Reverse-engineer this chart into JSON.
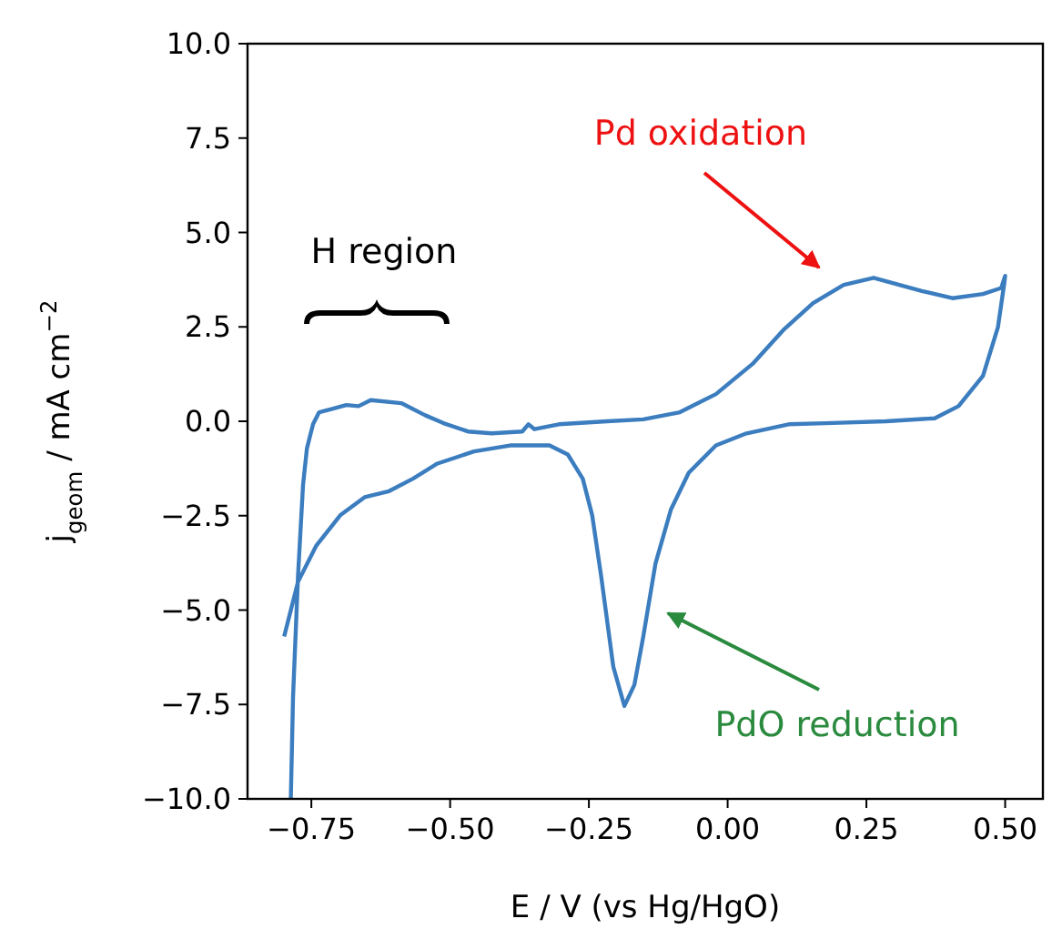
{
  "chart_data": {
    "type": "line",
    "xlabel": "E / V (vs Hg/HgO)",
    "ylabel": "j$_{geom}$ / mA cm$^{−2}$",
    "xlim": [
      -0.865,
      0.568
    ],
    "ylim": [
      -10,
      10
    ],
    "xticks": [
      {
        "value": -0.75,
        "label": "−0.75"
      },
      {
        "value": -0.5,
        "label": "−0.50"
      },
      {
        "value": -0.25,
        "label": "−0.25"
      },
      {
        "value": 0,
        "label": "0.00"
      },
      {
        "value": 0.25,
        "label": "0.25"
      },
      {
        "value": 0.5,
        "label": "0.50"
      }
    ],
    "yticks": [
      {
        "value": -10,
        "label": "−10.0"
      },
      {
        "value": -7.5,
        "label": "−7.5"
      },
      {
        "value": -5,
        "label": "−5.0"
      },
      {
        "value": -2.5,
        "label": "−2.5"
      },
      {
        "value": 0,
        "label": "0.0"
      },
      {
        "value": 2.5,
        "label": "2.5"
      },
      {
        "value": 5,
        "label": "5.0"
      },
      {
        "value": 7.5,
        "label": "7.5"
      },
      {
        "value": 10,
        "label": "10.0"
      }
    ],
    "grid": false,
    "marker": "none",
    "line_style": "solid",
    "series": [
      {
        "color": "#3b7dbf",
        "x": [
          -0.799,
          -0.774,
          -0.741,
          -0.698,
          -0.654,
          -0.61,
          -0.567,
          -0.523,
          -0.457,
          -0.392,
          -0.321,
          -0.288,
          -0.261,
          -0.244,
          -0.228,
          -0.206,
          -0.186,
          -0.168,
          -0.152,
          -0.13,
          -0.102,
          -0.07,
          -0.021,
          0.034,
          0.11,
          0.176,
          0.285,
          0.373,
          0.416,
          0.46,
          0.487,
          0.498,
          0.5,
          0.493,
          0.46,
          0.405,
          0.35,
          0.263,
          0.209,
          0.154,
          0.1,
          0.045,
          -0.021,
          -0.086,
          -0.152,
          -0.217,
          -0.304,
          -0.348,
          -0.359,
          -0.37,
          -0.425,
          -0.468,
          -0.512,
          -0.545,
          -0.588,
          -0.643,
          -0.665,
          -0.687,
          -0.714,
          -0.736,
          -0.747,
          -0.758,
          -0.765,
          -0.774,
          -0.783,
          -0.787
        ],
        "values": [
          -5.7,
          -4.25,
          -3.29,
          -2.49,
          -2.01,
          -1.85,
          -1.52,
          -1.12,
          -0.8,
          -0.64,
          -0.64,
          -0.88,
          -1.52,
          -2.49,
          -4.09,
          -6.5,
          -7.54,
          -6.98,
          -5.7,
          -3.77,
          -2.33,
          -1.36,
          -0.64,
          -0.32,
          -0.08,
          -0.05,
          0,
          0.08,
          0.4,
          1.2,
          2.49,
          3.61,
          3.85,
          3.53,
          3.37,
          3.26,
          3.45,
          3.8,
          3.61,
          3.13,
          2.41,
          1.52,
          0.72,
          0.24,
          0.05,
          0,
          -0.08,
          -0.21,
          -0.08,
          -0.27,
          -0.32,
          -0.27,
          -0.05,
          0.16,
          0.48,
          0.56,
          0.4,
          0.43,
          0.32,
          0.24,
          -0.08,
          -0.72,
          -1.69,
          -4.09,
          -7.3,
          -10
        ]
      }
    ],
    "annotations": [
      "Pd oxidation",
      "PdO reduction",
      "H region"
    ]
  }
}
